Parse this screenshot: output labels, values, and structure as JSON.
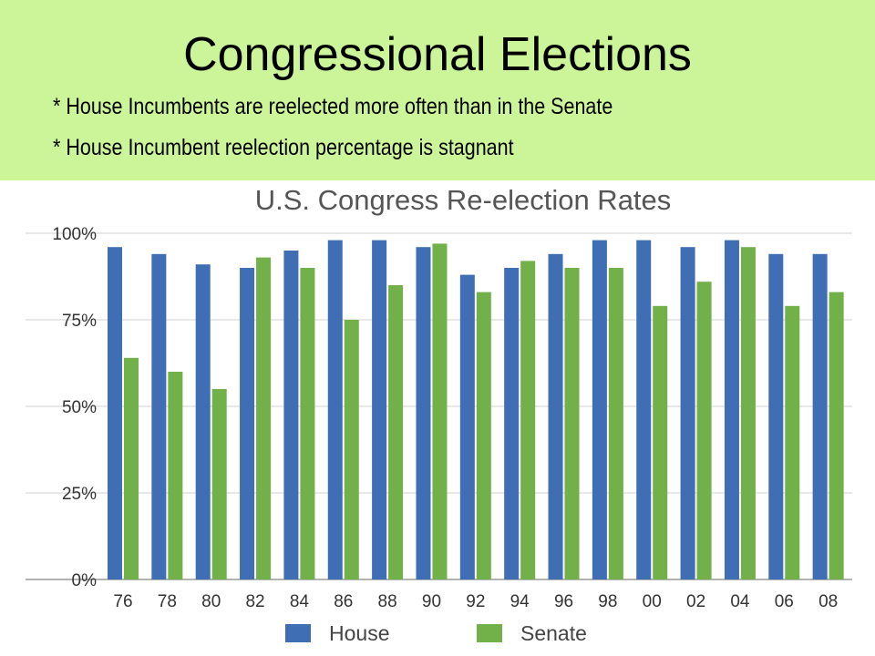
{
  "slide": {
    "title": "Congressional Elections",
    "bullets": [
      "* House Incumbents are reelected more often than in the Senate",
      "* House Incumbent reelection percentage is stagnant"
    ]
  },
  "colors": {
    "header_bg": "#ccf59a",
    "house": "#3f6eb5",
    "senate": "#72b04a"
  },
  "chart_data": {
    "type": "bar",
    "title": "U.S. Congress Re-election Rates",
    "xlabel": "",
    "ylabel": "",
    "categories": [
      "76",
      "78",
      "80",
      "82",
      "84",
      "86",
      "88",
      "90",
      "92",
      "94",
      "96",
      "98",
      "00",
      "02",
      "04",
      "06",
      "08"
    ],
    "series": [
      {
        "name": "House",
        "values": [
          96,
          94,
          91,
          90,
          95,
          98,
          98,
          96,
          88,
          90,
          94,
          98,
          98,
          96,
          98,
          94,
          94
        ]
      },
      {
        "name": "Senate",
        "values": [
          64,
          60,
          55,
          93,
          90,
          75,
          85,
          97,
          83,
          92,
          90,
          90,
          79,
          86,
          96,
          79,
          83
        ]
      }
    ],
    "ylim": [
      0,
      100
    ],
    "yticks": [
      "0%",
      "25%",
      "50%",
      "75%",
      "100%"
    ],
    "grid": true,
    "legend": "bottom"
  }
}
